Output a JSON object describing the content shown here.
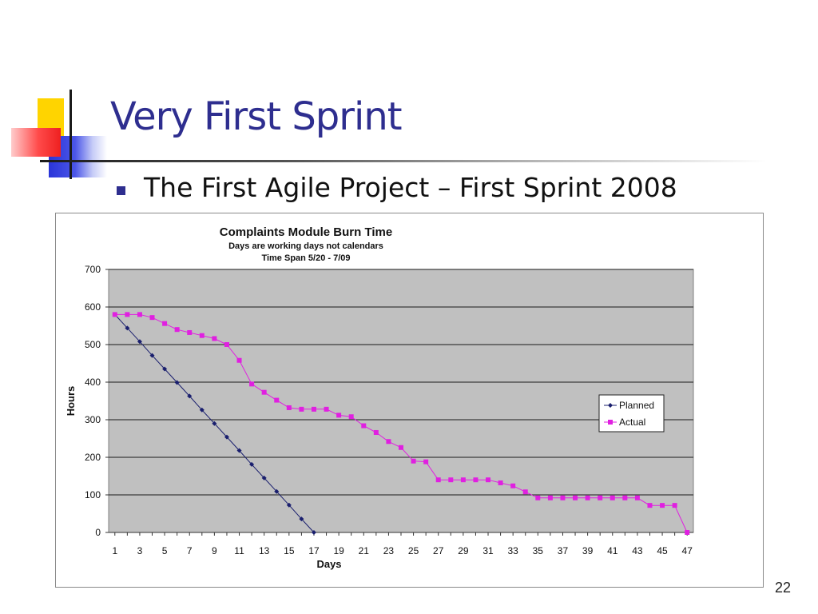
{
  "slide": {
    "title": "Very First Sprint",
    "bullet": "The First Agile Project – First Sprint 2008",
    "page_number": "22"
  },
  "colors": {
    "title": "#2e2e8f",
    "plot_bg": "#c0c0c0",
    "planned": "#1a1f6e",
    "actual": "#e020e0"
  },
  "chart_data": {
    "type": "line",
    "title": "Complaints Module  Burn Time",
    "subtitle_lines": [
      "Days are working days not calendars",
      "Time Span 5/20 - 7/09"
    ],
    "xlabel": "Days",
    "ylabel": "Hours",
    "ylim": [
      0,
      700
    ],
    "yticks": [
      0,
      100,
      200,
      300,
      400,
      500,
      600,
      700
    ],
    "xlim": [
      1,
      47
    ],
    "xticks": [
      1,
      3,
      5,
      7,
      9,
      11,
      13,
      15,
      17,
      19,
      21,
      23,
      25,
      27,
      29,
      31,
      33,
      35,
      37,
      39,
      41,
      43,
      45,
      47
    ],
    "grid": true,
    "legend_position": "right",
    "series": [
      {
        "name": "Planned",
        "marker": "diamond",
        "x": [
          1,
          2,
          3,
          4,
          5,
          6,
          7,
          8,
          9,
          10,
          11,
          12,
          13,
          14,
          15,
          16,
          17
        ],
        "values": [
          580,
          544,
          508,
          471,
          435,
          399,
          363,
          326,
          290,
          254,
          218,
          181,
          145,
          109,
          73,
          36,
          0
        ]
      },
      {
        "name": "Actual",
        "marker": "square",
        "x": [
          1,
          2,
          3,
          4,
          5,
          6,
          7,
          8,
          9,
          10,
          11,
          12,
          13,
          14,
          15,
          16,
          17,
          18,
          19,
          20,
          21,
          22,
          23,
          24,
          25,
          26,
          27,
          28,
          29,
          30,
          31,
          32,
          33,
          34,
          35,
          36,
          37,
          38,
          39,
          40,
          41,
          42,
          43,
          44,
          45,
          46,
          47
        ],
        "values": [
          580,
          580,
          580,
          572,
          556,
          540,
          532,
          524,
          516,
          500,
          458,
          395,
          373,
          352,
          332,
          328,
          328,
          328,
          312,
          308,
          284,
          266,
          242,
          226,
          190,
          188,
          140,
          140,
          140,
          140,
          140,
          132,
          124,
          108,
          92,
          92,
          92,
          92,
          92,
          92,
          92,
          92,
          92,
          72,
          72,
          72,
          0
        ]
      }
    ]
  }
}
